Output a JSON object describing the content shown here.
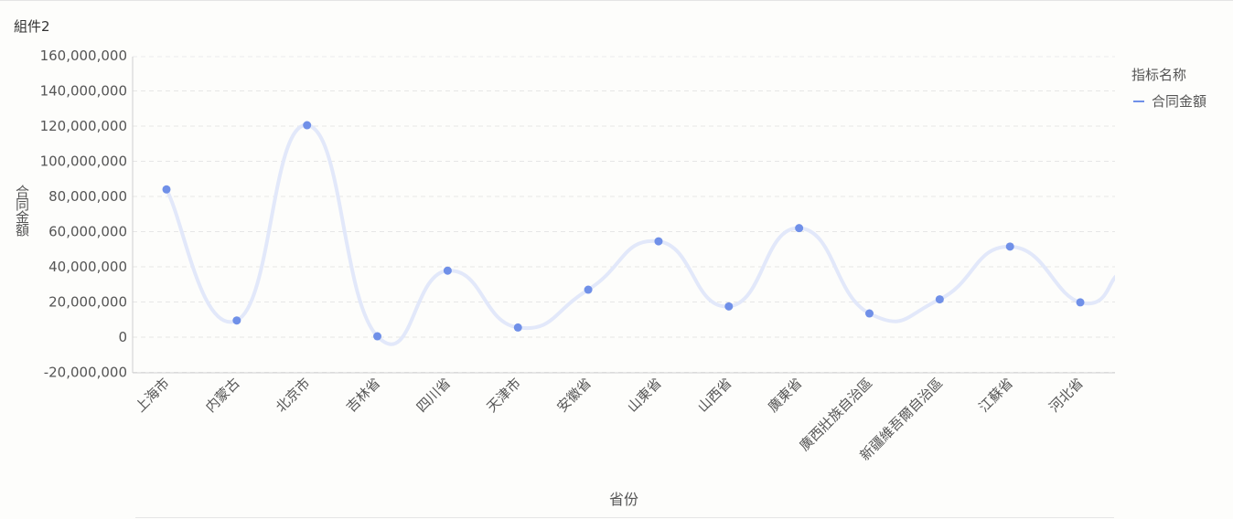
{
  "widget": {
    "title": "組件2"
  },
  "legend": {
    "title": "指标名称",
    "items": [
      {
        "label": "合同金額",
        "color": "#7090e8"
      }
    ]
  },
  "chart_data": {
    "type": "line",
    "smooth": true,
    "xlabel": "省份",
    "ylabel": "合同金額",
    "ylim": [
      -20000000,
      160000000
    ],
    "y_ticks": [
      -20000000,
      0,
      20000000,
      40000000,
      60000000,
      80000000,
      100000000,
      120000000,
      140000000,
      160000000
    ],
    "y_tick_labels": [
      "-20,000,000",
      "0",
      "20,000,000",
      "40,000,000",
      "60,000,000",
      "80,000,000",
      "100,000,000",
      "120,000,000",
      "140,000,000",
      "160,000,000"
    ],
    "grid": true,
    "legend_position": "top-right",
    "line_color": "#e2e8fa",
    "point_color": "#7090e8",
    "categories": [
      "上海市",
      "内蒙古",
      "北京市",
      "吉林省",
      "四川省",
      "天津市",
      "安徽省",
      "山東省",
      "山西省",
      "廣東省",
      "廣西壯族自治區",
      "新疆維吾爾自治區",
      "江蘇省",
      "河北省"
    ],
    "series": [
      {
        "name": "合同金額",
        "values": [
          84000000,
          9500000,
          120500000,
          500000,
          37800000,
          5500000,
          27000000,
          54500000,
          17500000,
          62000000,
          13500000,
          21500000,
          51500000,
          19800000
        ],
        "tail_value": 35000000
      }
    ]
  }
}
